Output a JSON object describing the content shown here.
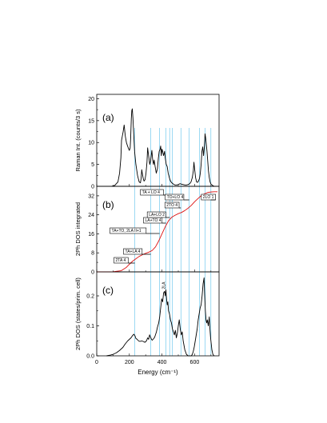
{
  "chart_data": [
    {
      "type": "line",
      "panel_label": "(a)",
      "ylabel": "Raman Int. (counts/3 s)",
      "xlim": [
        0,
        750
      ],
      "ylim": [
        0,
        21
      ],
      "yticks": [
        0,
        5,
        10,
        15,
        20
      ],
      "series": [
        {
          "color": "#000000",
          "x": [
            90,
            110,
            130,
            140,
            148,
            152,
            157,
            162,
            168,
            175,
            182,
            188,
            195,
            200,
            205,
            208,
            212,
            215,
            218,
            222,
            226,
            232,
            240,
            250,
            260,
            268,
            272,
            276,
            280,
            285,
            290,
            296,
            302,
            308,
            312,
            318,
            325,
            330,
            338,
            343,
            348,
            352,
            358,
            365,
            372,
            378,
            383,
            388,
            392,
            396,
            400,
            404,
            410,
            416,
            420,
            426,
            432,
            438,
            445,
            452,
            460,
            470,
            480,
            490,
            500,
            510,
            520,
            530,
            540,
            550,
            560,
            570,
            578,
            586,
            592,
            596,
            600,
            606,
            612,
            618,
            624,
            630,
            635,
            640,
            645,
            650,
            655,
            660,
            664,
            668,
            672,
            676,
            680,
            685,
            690,
            695,
            700,
            710,
            720,
            730
          ],
          "y": [
            0,
            0.2,
            1.0,
            3.0,
            6.5,
            10.5,
            11.5,
            12.5,
            14.0,
            11.5,
            10.0,
            9.3,
            8.6,
            8.2,
            8.8,
            11.0,
            15.5,
            17.3,
            17.7,
            15.5,
            12.5,
            8.0,
            5.0,
            2.5,
            1.0,
            0.8,
            1.8,
            3.8,
            2.8,
            1.8,
            1.2,
            1.5,
            3.0,
            5.5,
            8.8,
            7.0,
            5.0,
            5.8,
            8.2,
            6.0,
            5.0,
            6.0,
            4.5,
            3.0,
            4.0,
            6.5,
            8.0,
            8.4,
            9.2,
            7.0,
            8.5,
            8.0,
            7.0,
            8.0,
            6.5,
            5.0,
            4.5,
            3.0,
            2.0,
            1.2,
            0.8,
            0.5,
            0.3,
            0.3,
            0.4,
            0.6,
            0.5,
            0.4,
            0.3,
            0.3,
            0.4,
            0.6,
            1.0,
            2.0,
            3.5,
            5.5,
            4.0,
            2.0,
            1.0,
            0.9,
            1.2,
            1.8,
            3.0,
            5.0,
            8.0,
            9.0,
            7.0,
            9.0,
            12.0,
            11.0,
            9.5,
            8.0,
            6.0,
            3.5,
            2.0,
            1.0,
            0.5,
            0.2,
            0,
            0
          ]
        }
      ]
    },
    {
      "type": "line",
      "panel_label": "(b)",
      "ylabel": "2Ph DOS integrated",
      "xlim": [
        0,
        750
      ],
      "ylim": [
        0,
        36
      ],
      "yticks": [
        0,
        8,
        16,
        24,
        32
      ],
      "series": [
        {
          "color": "#dd1111",
          "x": [
            0,
            100,
            150,
            180,
            200,
            220,
            240,
            260,
            280,
            300,
            320,
            340,
            360,
            380,
            400,
            420,
            440,
            460,
            480,
            500,
            520,
            540,
            560,
            580,
            600,
            620,
            640,
            660,
            680,
            700,
            720,
            740
          ],
          "y": [
            0,
            0.05,
            0.5,
            1.8,
            3.2,
            4.5,
            5.5,
            6.5,
            7.2,
            7.8,
            8.3,
            9.0,
            10.5,
            13.0,
            16.0,
            19.0,
            21.5,
            23.0,
            23.8,
            24.5,
            25.0,
            25.8,
            26.8,
            28.0,
            29.5,
            30.8,
            32.0,
            32.8,
            33.4,
            33.6,
            33.7,
            33.7
          ]
        }
      ],
      "annotations": [
        {
          "label": "2TA 4",
          "x": 233
        },
        {
          "label": "TA+LA 4",
          "x": 331
        },
        {
          "label": "TA+TO, 2LA II+1",
          "x": 385
        },
        {
          "label": "LA+TO 4",
          "x": 424
        },
        {
          "label": "LA+LO 2",
          "x": 447
        },
        {
          "label": "TA + LO 4",
          "x": 464
        },
        {
          "label": "2TO 4",
          "x": 516
        },
        {
          "label": "TO+LO 4",
          "x": 567
        },
        {
          "label": "2LO 1",
          "x": 700
        }
      ]
    },
    {
      "type": "line",
      "panel_label": "(c)",
      "ylabel": "2Ph DOS (states/prim. cell)",
      "xlabel": "Energy (cm⁻¹)",
      "xlim": [
        0,
        750
      ],
      "ylim": [
        0,
        0.28
      ],
      "yticks": [
        0.0,
        0.1,
        0.2
      ],
      "xticks": [
        0,
        200,
        400,
        600
      ],
      "inline_label": "2LA",
      "series": [
        {
          "color": "#000000",
          "x": [
            60,
            80,
            100,
            120,
            140,
            160,
            175,
            190,
            200,
            210,
            220,
            228,
            235,
            240,
            248,
            256,
            265,
            275,
            285,
            295,
            305,
            312,
            318,
            324,
            330,
            336,
            340,
            345,
            350,
            355,
            360,
            366,
            372,
            380,
            386,
            392,
            398,
            404,
            410,
            416,
            420,
            424,
            428,
            432,
            436,
            440,
            446,
            452,
            458,
            464,
            470,
            476,
            482,
            488,
            494,
            500,
            506,
            512,
            518,
            524,
            530,
            540,
            550,
            560,
            570,
            580,
            586,
            592,
            598,
            604,
            610,
            616,
            622,
            628,
            634,
            640,
            646,
            652,
            658,
            662,
            666,
            670,
            674,
            678,
            684,
            690,
            694,
            698,
            702,
            706,
            712,
            720
          ],
          "y": [
            0,
            0.002,
            0.005,
            0.01,
            0.018,
            0.028,
            0.04,
            0.05,
            0.055,
            0.06,
            0.068,
            0.072,
            0.066,
            0.058,
            0.055,
            0.05,
            0.048,
            0.05,
            0.048,
            0.045,
            0.05,
            0.06,
            0.055,
            0.07,
            0.062,
            0.055,
            0.052,
            0.055,
            0.058,
            0.062,
            0.07,
            0.08,
            0.095,
            0.11,
            0.13,
            0.16,
            0.19,
            0.18,
            0.21,
            0.215,
            0.2,
            0.22,
            0.19,
            0.17,
            0.18,
            0.15,
            0.14,
            0.12,
            0.11,
            0.09,
            0.08,
            0.07,
            0.085,
            0.06,
            0.075,
            0.1,
            0.12,
            0.09,
            0.07,
            0.08,
            0.05,
            0.02,
            0.005,
            0,
            0,
            0,
            0.005,
            0.015,
            0.03,
            0.05,
            0.07,
            0.09,
            0.12,
            0.14,
            0.16,
            0.17,
            0.2,
            0.24,
            0.26,
            0.2,
            0.15,
            0.12,
            0.11,
            0.12,
            0.1,
            0.13,
            0.09,
            0.06,
            0.04,
            0.02,
            0.005,
            0
          ]
        }
      ]
    }
  ],
  "guide_lines": {
    "color": "#5bc0eb",
    "x": [
      233,
      331,
      385,
      424,
      447,
      464,
      516,
      567,
      630,
      665,
      700
    ]
  }
}
